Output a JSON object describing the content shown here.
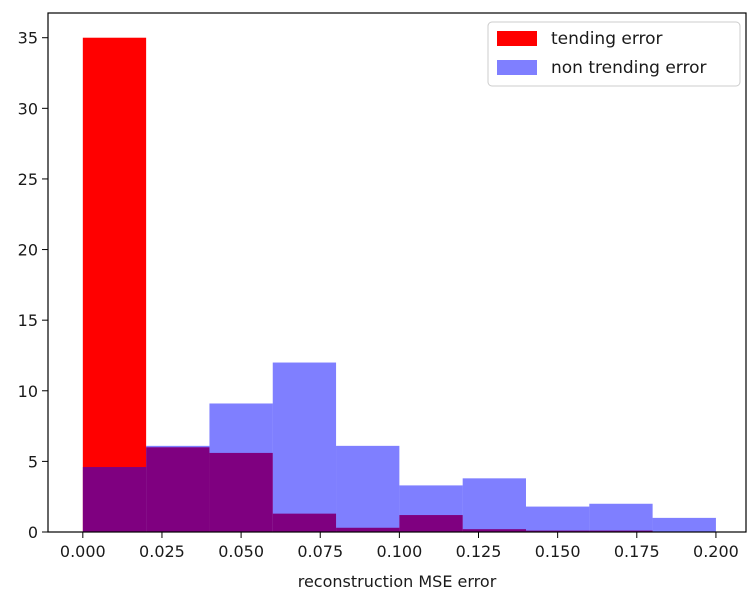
{
  "chart_data": {
    "type": "bar",
    "subtype": "histogram-overlay",
    "title": "",
    "xlabel": "reconstruction MSE error",
    "ylabel": "",
    "xlim": [
      -0.011,
      0.2095
    ],
    "ylim": [
      0,
      36.75
    ],
    "xticks": [
      0.0,
      0.025,
      0.05,
      0.075,
      0.1,
      0.125,
      0.15,
      0.175,
      0.2
    ],
    "xtick_labels": [
      "0.000",
      "0.025",
      "0.050",
      "0.075",
      "0.100",
      "0.125",
      "0.150",
      "0.175",
      "0.200"
    ],
    "yticks": [
      0,
      5,
      10,
      15,
      20,
      25,
      30,
      35
    ],
    "ytick_labels": [
      "0",
      "5",
      "10",
      "15",
      "20",
      "25",
      "30",
      "35"
    ],
    "grid": false,
    "legend": "top-right",
    "series": [
      {
        "name": "tending error",
        "color": "#ff0000",
        "opacity": 1.0,
        "bin_edges": [
          0.0,
          0.02,
          0.04,
          0.06,
          0.08,
          0.1,
          0.12,
          0.14,
          0.16,
          0.18,
          0.2
        ],
        "values": [
          35,
          6,
          5.6,
          1.3,
          0.3,
          1.2,
          0.2,
          0.1,
          0.1,
          0.0
        ]
      },
      {
        "name": "non trending error",
        "color": "#0000ff",
        "opacity": 0.5,
        "bin_edges": [
          0.0,
          0.02,
          0.04,
          0.06,
          0.08,
          0.1,
          0.12,
          0.14,
          0.16,
          0.18,
          0.2
        ],
        "values": [
          4.6,
          6.1,
          9.1,
          12.0,
          6.1,
          3.3,
          3.8,
          1.8,
          2.0,
          1.0
        ]
      }
    ]
  }
}
